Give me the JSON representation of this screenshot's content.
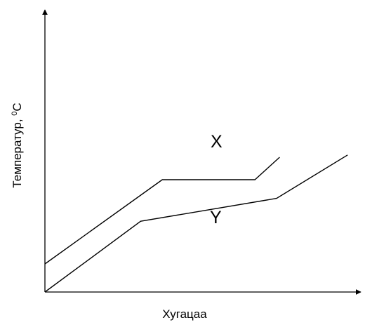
{
  "chart_data": {
    "type": "line",
    "xlabel": "Хугацаа",
    "ylabel": {
      "prefix": "Температур, ",
      "superscript": "0",
      "unit": "C"
    },
    "grid": false,
    "legend": "none",
    "ticks": "none",
    "xlim": [
      0,
      100
    ],
    "ylim": [
      0,
      100
    ],
    "series": [
      {
        "name": "X",
        "color": "#000000",
        "x": [
          0,
          38,
          68,
          76
        ],
        "y": [
          12.5,
          50,
          50,
          60
        ]
      },
      {
        "name": "Y",
        "color": "#000000",
        "x": [
          0,
          31,
          75,
          98
        ],
        "y": [
          0,
          31.5,
          41.7,
          61
        ]
      }
    ]
  }
}
